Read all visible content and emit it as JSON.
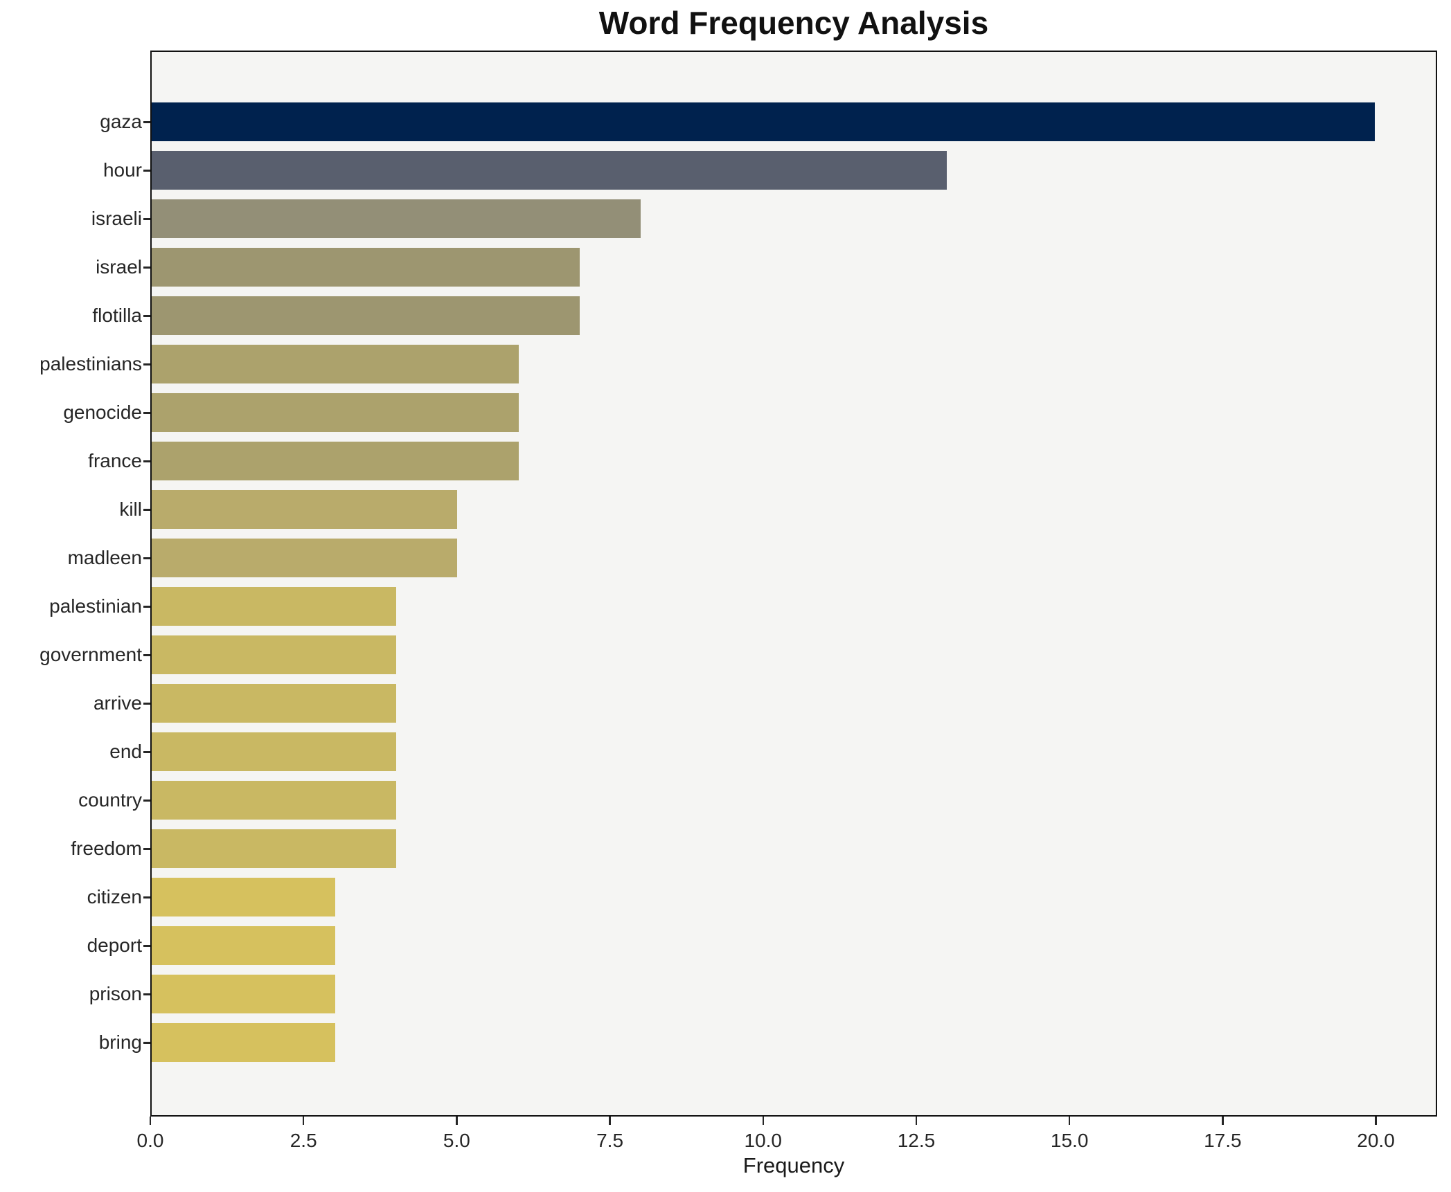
{
  "title": "Word Frequency Analysis",
  "chart_data": {
    "type": "bar",
    "orientation": "horizontal",
    "title": "Word Frequency Analysis",
    "xlabel": "Frequency",
    "ylabel": "",
    "grid": false,
    "legend": null,
    "xlim": [
      0,
      21
    ],
    "x_ticks": [
      {
        "value": 0,
        "label": "0.0"
      },
      {
        "value": 2.5,
        "label": "2.5"
      },
      {
        "value": 5,
        "label": "5.0"
      },
      {
        "value": 7.5,
        "label": "7.5"
      },
      {
        "value": 10,
        "label": "10.0"
      },
      {
        "value": 12.5,
        "label": "12.5"
      },
      {
        "value": 15,
        "label": "15.0"
      },
      {
        "value": 17.5,
        "label": "17.5"
      },
      {
        "value": 20,
        "label": "20.0"
      }
    ],
    "plot_background": "#f5f5f3",
    "spine_color": "#111111",
    "colormap_note": "cividis reversed, scaled by frequency",
    "bars": [
      {
        "category": "gaza",
        "value": 20,
        "color": "#00224e"
      },
      {
        "category": "hour",
        "value": 13,
        "color": "#595f6e"
      },
      {
        "category": "israeli",
        "value": 8,
        "color": "#938f77"
      },
      {
        "category": "israel",
        "value": 7,
        "color": "#9d9670"
      },
      {
        "category": "flotilla",
        "value": 7,
        "color": "#9d9670"
      },
      {
        "category": "palestinians",
        "value": 6,
        "color": "#aca26c"
      },
      {
        "category": "genocide",
        "value": 6,
        "color": "#aca26c"
      },
      {
        "category": "france",
        "value": 6,
        "color": "#aca26c"
      },
      {
        "category": "kill",
        "value": 5,
        "color": "#b9ab6b"
      },
      {
        "category": "madleen",
        "value": 5,
        "color": "#b9ab6b"
      },
      {
        "category": "palestinian",
        "value": 4,
        "color": "#c9b863"
      },
      {
        "category": "government",
        "value": 4,
        "color": "#c9b863"
      },
      {
        "category": "arrive",
        "value": 4,
        "color": "#c9b863"
      },
      {
        "category": "end",
        "value": 4,
        "color": "#c9b863"
      },
      {
        "category": "country",
        "value": 4,
        "color": "#c9b863"
      },
      {
        "category": "freedom",
        "value": 4,
        "color": "#c9b863"
      },
      {
        "category": "citizen",
        "value": 3,
        "color": "#d6c15e"
      },
      {
        "category": "deport",
        "value": 3,
        "color": "#d6c15e"
      },
      {
        "category": "prison",
        "value": 3,
        "color": "#d6c15e"
      },
      {
        "category": "bring",
        "value": 3,
        "color": "#d6c15e"
      }
    ]
  }
}
